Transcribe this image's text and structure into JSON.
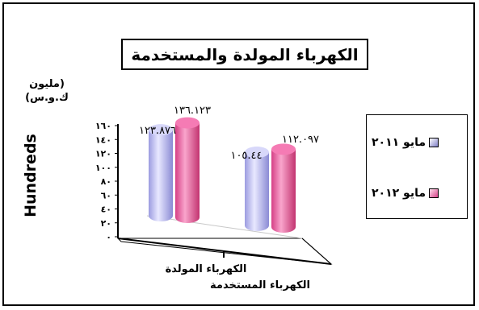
{
  "chart_data": {
    "type": "bar",
    "title": "الكهرباء المولدة والمستخدمة",
    "unit_label": "(مليون ك.و.س)",
    "ylabel": "Hundreds",
    "categories": [
      "الكهرباء المولدة",
      "الكهرباء المستخدمة"
    ],
    "series": [
      {
        "name": "مايو ٢٠١١",
        "color": "#c8c8f5",
        "values": [
          123.876,
          105.44
        ],
        "value_labels": [
          "١٢٣.٨٧٦",
          "١٠٥.٤٤"
        ]
      },
      {
        "name": "مايو ٢٠١٢",
        "color": "#f06aa8",
        "values": [
          136.123,
          112.097
        ],
        "value_labels": [
          "١٣٦.١٢٣",
          "١١٢.٠٩٧"
        ]
      }
    ],
    "ylim": [
      0,
      160
    ],
    "yticks": [
      0,
      20,
      40,
      60,
      80,
      100,
      120,
      140,
      160
    ],
    "ytick_labels": [
      "٠",
      "٢٠",
      "٤٠",
      "٦٠",
      "٨٠",
      "١٠٠",
      "١٢٠",
      "١٤٠",
      "١٦٠"
    ],
    "grid": false,
    "style": "3d-cylinder",
    "legend_position": "right"
  }
}
